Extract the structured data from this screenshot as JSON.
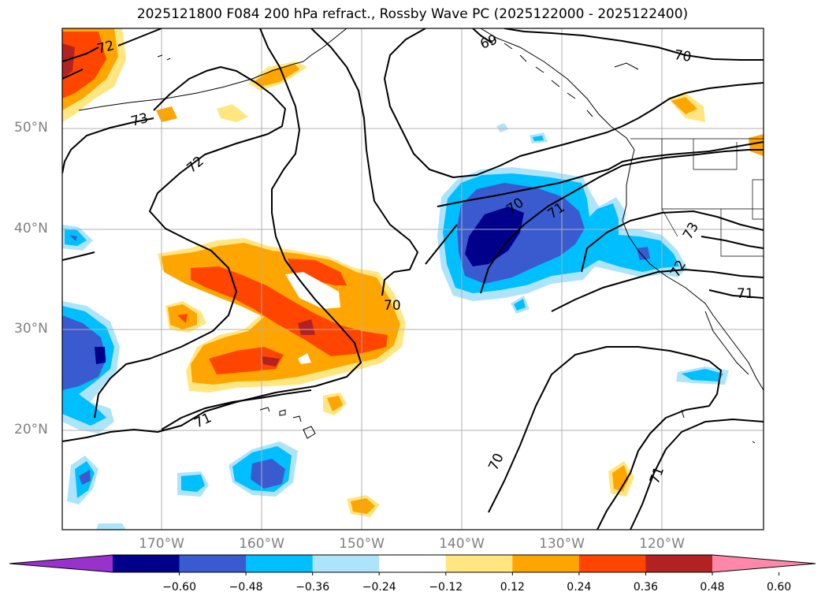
{
  "title": "2025121800 F084 200 hPa refract., Rossby Wave PC (2025122000 - 2025122400)",
  "lat_labels": [
    "50°N",
    "40°N",
    "30°N",
    "20°N"
  ],
  "lon_labels": [
    "170°W",
    "160°W",
    "150°W",
    "140°W",
    "130°W",
    "120°W"
  ],
  "contour_labels": [
    "72",
    "73",
    "72",
    "70",
    "69",
    "70",
    "71",
    "70",
    "71",
    "73",
    "72",
    "71",
    "70",
    "71"
  ],
  "colorbar": {
    "ticks": [
      "−0.60",
      "−0.48",
      "−0.36",
      "−0.24",
      "−0.12",
      "0.12",
      "0.24",
      "0.36",
      "0.48",
      "0.60"
    ],
    "colors": [
      "#9932cc",
      "#00008b",
      "#3a5bd0",
      "#00bfff",
      "#aee4fa",
      "#ffffff",
      "#ffe680",
      "#ffa500",
      "#ff4500",
      "#b22222",
      "#ff88aa"
    ]
  }
}
